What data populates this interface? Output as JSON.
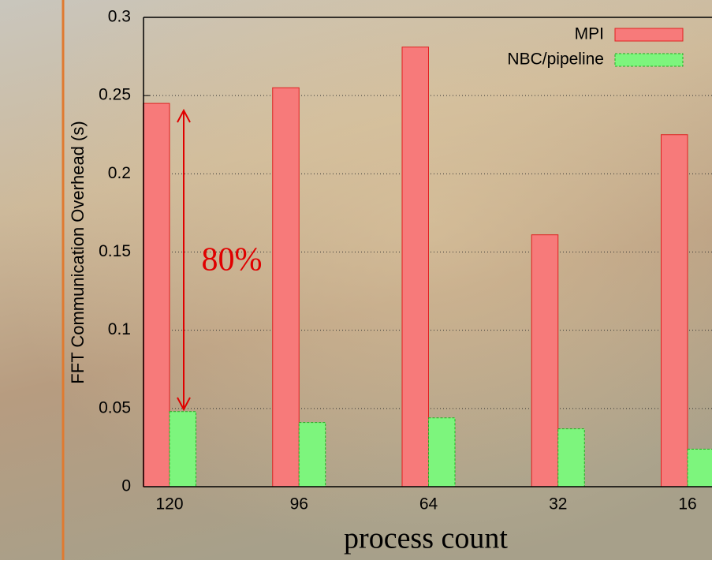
{
  "chart_data": {
    "type": "bar",
    "ylabel": "FFT Communication Overhead (s)",
    "xlabel": "process count",
    "annotation": "80%",
    "categories": [
      "120",
      "96",
      "64",
      "32",
      "16"
    ],
    "series": [
      {
        "name": "MPI",
        "color": "#f77a7a",
        "values": [
          0.245,
          0.255,
          0.281,
          0.161,
          0.225
        ]
      },
      {
        "name": "NBC/pipeline",
        "color": "#7df57d",
        "values": [
          0.048,
          0.041,
          0.044,
          0.037,
          0.024
        ]
      }
    ],
    "ylim": [
      0,
      0.3
    ],
    "yticks": [
      0,
      0.05,
      0.1,
      0.15,
      0.2,
      0.25,
      0.3
    ],
    "grid": true,
    "legend": "upper right"
  }
}
